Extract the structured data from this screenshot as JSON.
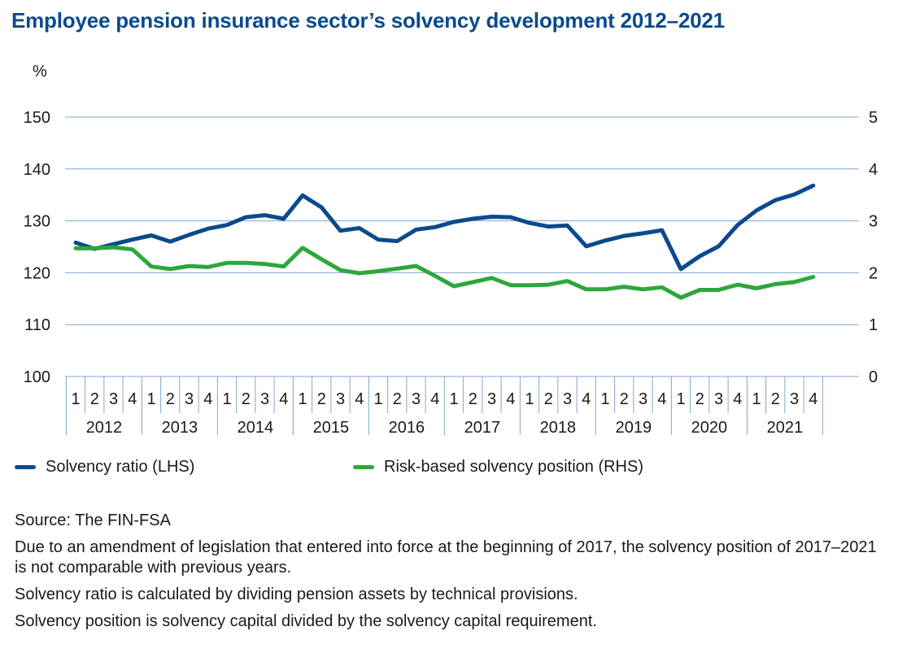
{
  "title": "Employee pension insurance sector’s solvency development 2012–2021",
  "chart_data": {
    "type": "line",
    "left_axis": {
      "unit_label": "%",
      "min": 100,
      "max": 150,
      "ticks": [
        100,
        110,
        120,
        130,
        140,
        150
      ]
    },
    "right_axis": {
      "min": 0,
      "max": 5,
      "ticks": [
        0,
        1,
        2,
        3,
        4,
        5
      ]
    },
    "quarters": [
      "1",
      "2",
      "3",
      "4"
    ],
    "years": [
      "2012",
      "2013",
      "2014",
      "2015",
      "2016",
      "2017",
      "2018",
      "2019",
      "2020",
      "2021"
    ],
    "series": [
      {
        "name": "Solvency ratio (LHS)",
        "axis": "left",
        "color": "#0a4a8c",
        "values": [
          125.8,
          124.6,
          125.5,
          126.4,
          127.2,
          126.0,
          127.3,
          128.5,
          129.2,
          130.7,
          131.1,
          130.4,
          134.9,
          132.6,
          128.1,
          128.6,
          126.4,
          126.1,
          128.3,
          128.8,
          129.8,
          130.4,
          130.8,
          130.7,
          129.6,
          128.9,
          129.1,
          125.1,
          126.2,
          127.1,
          127.6,
          128.2,
          120.7,
          123.2,
          125.1,
          129.2,
          132.0,
          134.0,
          135.1,
          136.8
        ]
      },
      {
        "name": "Risk-based solvency position (RHS)",
        "axis": "right",
        "color": "#2ea63b",
        "values": [
          2.47,
          2.47,
          2.49,
          2.45,
          2.12,
          2.07,
          2.13,
          2.11,
          2.19,
          2.19,
          2.17,
          2.12,
          2.48,
          2.26,
          2.05,
          1.99,
          2.03,
          2.08,
          2.13,
          1.94,
          1.74,
          1.82,
          1.9,
          1.76,
          1.76,
          1.77,
          1.84,
          1.68,
          1.68,
          1.73,
          1.68,
          1.72,
          1.52,
          1.67,
          1.67,
          1.77,
          1.7,
          1.78,
          1.82,
          1.92
        ]
      }
    ]
  },
  "legend": {
    "items": [
      {
        "label": "Solvency ratio (LHS)",
        "color": "#0a4a8c"
      },
      {
        "label": "Risk-based solvency position (RHS)",
        "color": "#2ea63b"
      }
    ]
  },
  "notes": {
    "source": "Source: The FIN-FSA",
    "note1": "Due to an amendment of legislation that entered into force at the beginning of 2017, the solvency position of 2017–2021 is not comparable with previous years.",
    "note2": "Solvency ratio is calculated by dividing pension assets by technical provisions.",
    "note3": "Solvency position is solvency capital divided by the solvency capital requirement."
  }
}
